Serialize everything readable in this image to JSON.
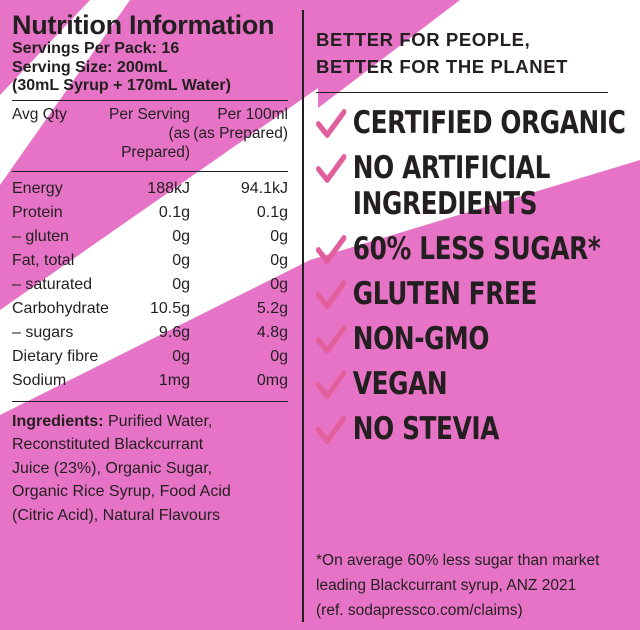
{
  "colors": {
    "pink": "#e673c5",
    "text": "#231f20",
    "check": "#e15f9d"
  },
  "nutrition": {
    "title": "Nutrition Information",
    "servings_per_pack": "Servings Per Pack: 16",
    "serving_size": "Serving Size: 200mL",
    "serving_detail": "(30mL Syrup + 170mL Water)",
    "headers": {
      "avg_qty": "Avg Qty",
      "per_serving": "Per Serving",
      "per_serving_note": "(as Prepared)",
      "per_100ml": "Per 100ml",
      "per_100ml_note": "(as Prepared)"
    },
    "rows": [
      {
        "name": "Energy",
        "per_serving": "188kJ",
        "per_100ml": "94.1kJ"
      },
      {
        "name": "Protein",
        "per_serving": "0.1g",
        "per_100ml": "0.1g"
      },
      {
        "name": "– gluten",
        "per_serving": "0g",
        "per_100ml": "0g"
      },
      {
        "name": "Fat, total",
        "per_serving": "0g",
        "per_100ml": "0g"
      },
      {
        "name": "– saturated",
        "per_serving": "0g",
        "per_100ml": "0g"
      },
      {
        "name": "Carbohydrate",
        "per_serving": "10.5g",
        "per_100ml": "5.2g"
      },
      {
        "name": "– sugars",
        "per_serving": "9.6g",
        "per_100ml": "4.8g"
      },
      {
        "name": "Dietary fibre",
        "per_serving": "0g",
        "per_100ml": "0g"
      },
      {
        "name": "Sodium",
        "per_serving": "1mg",
        "per_100ml": "0mg"
      }
    ]
  },
  "ingredients": {
    "label": "Ingredients:",
    "lines": [
      " Purified Water,",
      "Reconstituted Blackcurrant",
      "Juice (23%), Organic Sugar,",
      "Organic Rice Syrup, Food Acid",
      "(Citric Acid), Natural Flavours"
    ]
  },
  "claims": {
    "heading_line1": "BETTER FOR PEOPLE,",
    "heading_line2": "BETTER FOR THE PLANET",
    "items": [
      {
        "lines": [
          "CERTIFIED ORGANIC"
        ]
      },
      {
        "lines": [
          "NO ARTIFICIAL",
          "INGREDIENTS"
        ]
      },
      {
        "lines": [
          "60% LESS SUGAR*"
        ]
      },
      {
        "lines": [
          "GLUTEN FREE"
        ]
      },
      {
        "lines": [
          "NON-GMO"
        ]
      },
      {
        "lines": [
          "VEGAN"
        ]
      },
      {
        "lines": [
          "NO STEVIA"
        ]
      }
    ],
    "check_icon": "checkmark-icon"
  },
  "footnote": {
    "line1": "*On average 60% less sugar than market",
    "line2": "leading Blackcurrant syrup, ANZ 2021",
    "line3": "(ref. sodapressco.com/claims)"
  }
}
